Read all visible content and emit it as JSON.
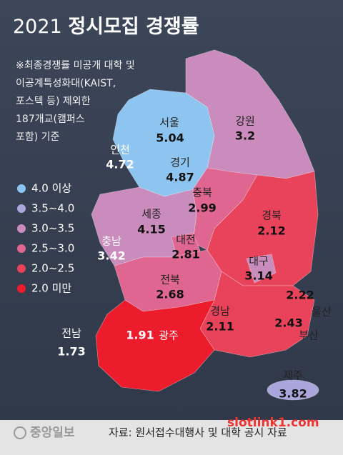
{
  "title": {
    "year": "2021",
    "text": "정시모집 경쟁률"
  },
  "note": [
    "※최종경쟁률 미공개 대학 및",
    "이공계특성화대(KAIST,",
    "포스텍 등) 제외한",
    "187개교(캠퍼스",
    "포함) 기준"
  ],
  "legend": [
    {
      "label": "4.0 이상",
      "color": "#8ec5f0"
    },
    {
      "label": "3.5~4.0",
      "color": "#aaa6dc"
    },
    {
      "label": "3.0~3.5",
      "color": "#c98cbd"
    },
    {
      "label": "2.5~3.0",
      "color": "#df6690"
    },
    {
      "label": "2.0~2.5",
      "color": "#e9435c"
    },
    {
      "label": "2.0 미만",
      "color": "#ec1c2c"
    }
  ],
  "regions": [
    {
      "name": "서울",
      "value": 5.04
    },
    {
      "name": "강원",
      "value": 3.2
    },
    {
      "name": "인천",
      "value": 4.72
    },
    {
      "name": "경기",
      "value": 4.87
    },
    {
      "name": "충북",
      "value": 2.99
    },
    {
      "name": "세종",
      "value": 4.15
    },
    {
      "name": "경북",
      "value": 2.12
    },
    {
      "name": "충남",
      "value": 3.42
    },
    {
      "name": "대전",
      "value": 2.81
    },
    {
      "name": "대구",
      "value": 3.14
    },
    {
      "name": "전북",
      "value": 2.68
    },
    {
      "name": "울산",
      "value": 2.22
    },
    {
      "name": "경남",
      "value": 2.11
    },
    {
      "name": "부산",
      "value": 2.43
    },
    {
      "name": "전남",
      "value": 1.73
    },
    {
      "name": "광주",
      "value": 1.91
    },
    {
      "name": "제주",
      "value": 3.82
    }
  ],
  "logo": "중앙일보",
  "source": "자료: 원서접수대행사 및 대학 공시 자료",
  "watermark": "slotlink1.com"
}
